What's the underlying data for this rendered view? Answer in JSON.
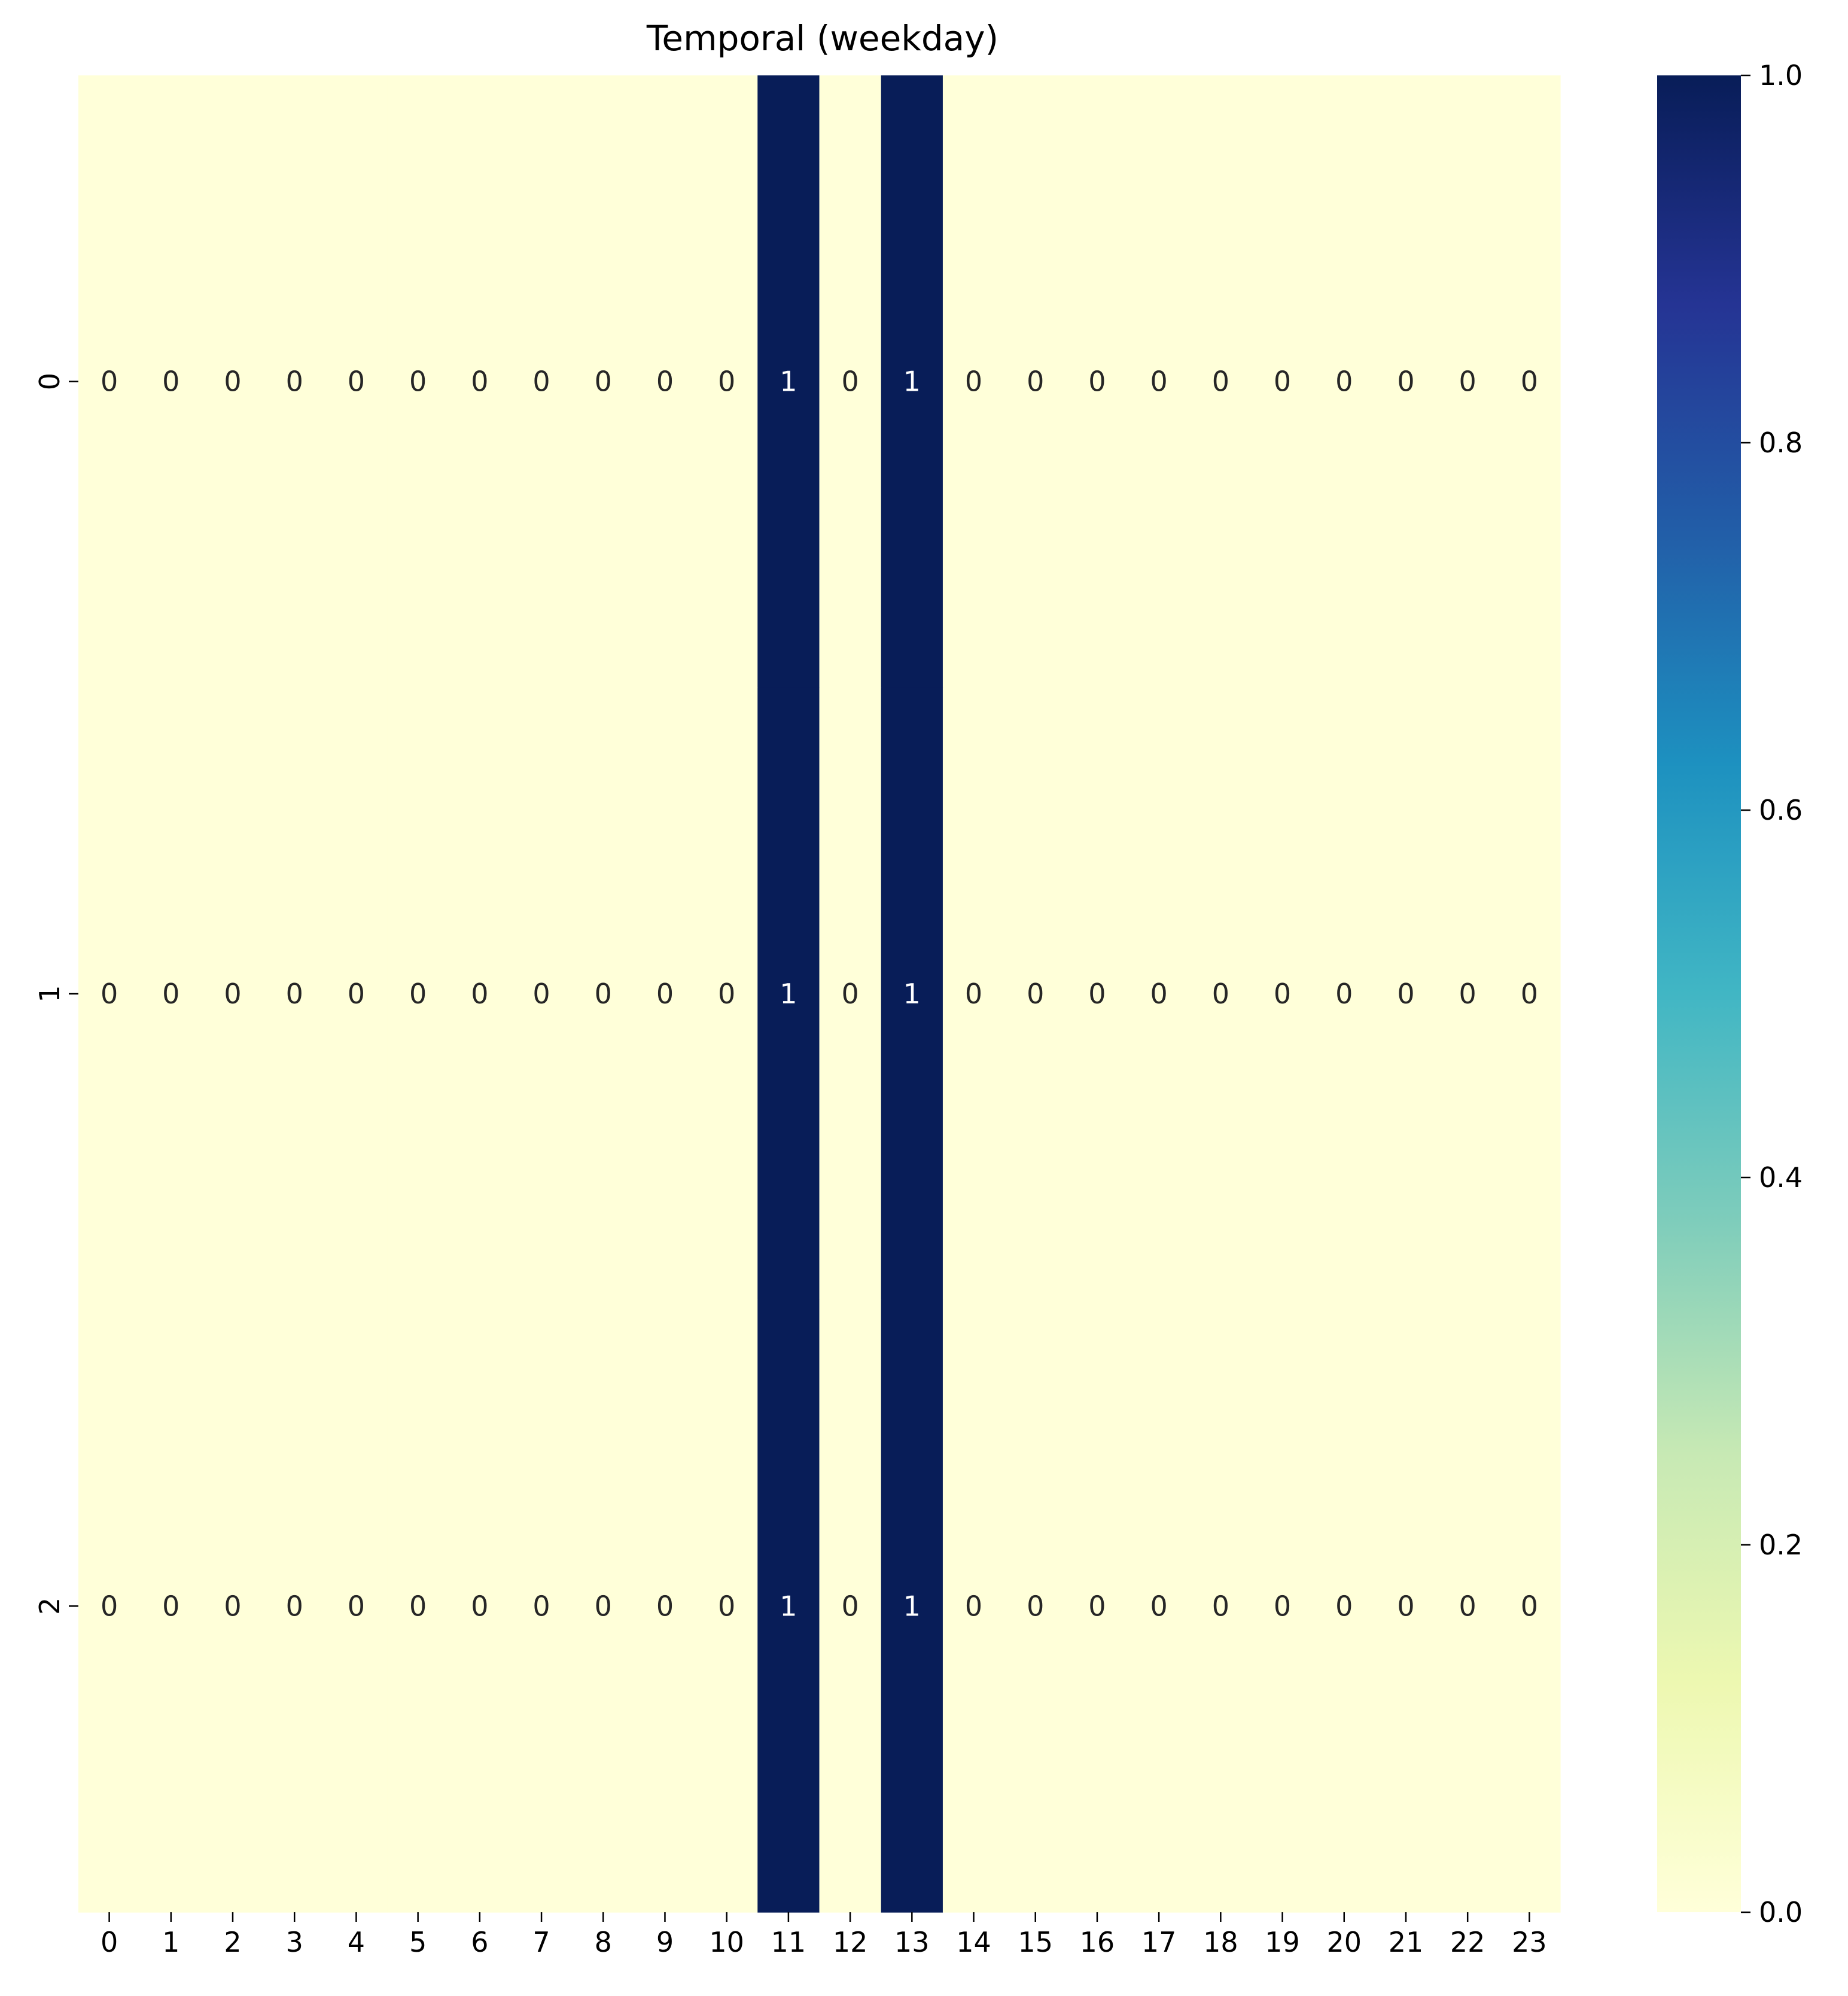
{
  "chart_data": {
    "type": "heatmap",
    "title": "Temporal (weekday)",
    "xlabel": "",
    "ylabel": "",
    "x_categories": [
      "0",
      "1",
      "2",
      "3",
      "4",
      "5",
      "6",
      "7",
      "8",
      "9",
      "10",
      "11",
      "12",
      "13",
      "14",
      "15",
      "16",
      "17",
      "18",
      "19",
      "20",
      "21",
      "22",
      "23"
    ],
    "y_categories": [
      "0",
      "1",
      "2"
    ],
    "values": [
      [
        0,
        0,
        0,
        0,
        0,
        0,
        0,
        0,
        0,
        0,
        0,
        1,
        0,
        1,
        0,
        0,
        0,
        0,
        0,
        0,
        0,
        0,
        0,
        0
      ],
      [
        0,
        0,
        0,
        0,
        0,
        0,
        0,
        0,
        0,
        0,
        0,
        1,
        0,
        1,
        0,
        0,
        0,
        0,
        0,
        0,
        0,
        0,
        0,
        0
      ],
      [
        0,
        0,
        0,
        0,
        0,
        0,
        0,
        0,
        0,
        0,
        0,
        1,
        0,
        1,
        0,
        0,
        0,
        0,
        0,
        0,
        0,
        0,
        0,
        0
      ]
    ],
    "annotated": true,
    "colormap": "YlGnBu",
    "colorbar": {
      "range": [
        0.0,
        1.0
      ],
      "ticks": [
        "0.0",
        "0.2",
        "0.4",
        "0.6",
        "0.8",
        "1.0"
      ]
    },
    "colors": {
      "low": "#ffffd9",
      "high": "#081d58",
      "annotation_dark": "#262626",
      "annotation_light": "#ffffff"
    },
    "grid": false
  }
}
